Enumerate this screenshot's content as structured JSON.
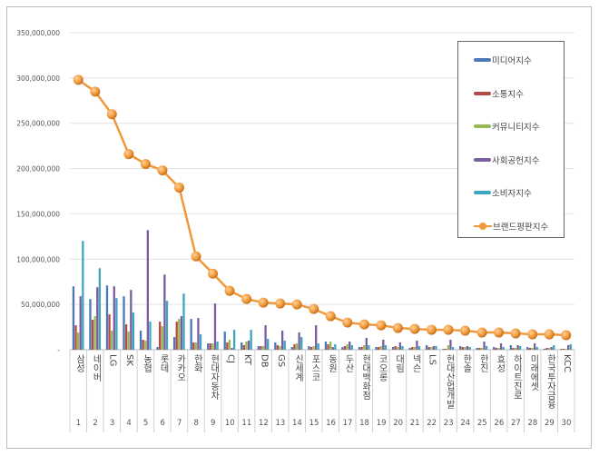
{
  "chart_data": {
    "type": "bar",
    "title": "",
    "xlabel": "",
    "ylabel": "",
    "ylim": [
      0,
      350000000
    ],
    "yticks": [
      "-",
      "50,000,000",
      "100,000,000",
      "150,000,000",
      "200,000,000",
      "250,000,000",
      "300,000,000",
      "350,000,000"
    ],
    "grid": true,
    "legend_position": "top-right",
    "categories": [
      "삼성",
      "네이버",
      "LG",
      "SK",
      "농협",
      "롯데",
      "카카오",
      "한화",
      "현대자동차",
      "CJ",
      "KT",
      "DB",
      "GS",
      "신세계",
      "포스코",
      "동원",
      "두산",
      "현대백화점",
      "코오롱",
      "대림",
      "넥슨",
      "LS",
      "현대산업개발",
      "한솔",
      "한진",
      "효성",
      "하이트진로",
      "미래에셋",
      "한국투자금융",
      "KCC"
    ],
    "ranks": [
      "1",
      "2",
      "3",
      "4",
      "5",
      "6",
      "7",
      "8",
      "9",
      "10",
      "11",
      "12",
      "13",
      "14",
      "15",
      "16",
      "17",
      "18",
      "19",
      "20",
      "21",
      "22",
      "23",
      "24",
      "25",
      "26",
      "27",
      "28",
      "29",
      "30"
    ],
    "series": [
      {
        "name": "미디어지수",
        "type": "bar",
        "color": "#4a78b8",
        "values": [
          70000000,
          56000000,
          71000000,
          59000000,
          21000000,
          3000000,
          14000000,
          34000000,
          7000000,
          20000000,
          8000000,
          4000000,
          8000000,
          3000000,
          4000000,
          9000000,
          3000000,
          3000000,
          3000000,
          3000000,
          2000000,
          5000000,
          1000000,
          4000000,
          2000000,
          3000000,
          5000000,
          3000000,
          1000000,
          1000000
        ]
      },
      {
        "name": "소통지수",
        "type": "bar",
        "color": "#b84a45",
        "values": [
          27000000,
          33000000,
          39000000,
          28000000,
          11000000,
          31000000,
          31000000,
          8000000,
          7000000,
          8000000,
          5000000,
          4000000,
          5000000,
          6000000,
          3000000,
          6000000,
          4000000,
          3000000,
          3000000,
          4000000,
          3000000,
          3000000,
          1000000,
          3000000,
          2000000,
          2000000,
          2000000,
          2000000,
          2000000,
          1000000
        ]
      },
      {
        "name": "커뮤니티지수",
        "type": "bar",
        "color": "#98b954",
        "values": [
          19000000,
          37000000,
          21000000,
          20000000,
          10000000,
          26000000,
          34000000,
          8000000,
          7000000,
          11000000,
          9000000,
          4000000,
          4000000,
          7000000,
          4000000,
          9000000,
          6000000,
          5000000,
          4000000,
          3000000,
          3000000,
          3000000,
          5000000,
          3000000,
          2000000,
          2000000,
          2000000,
          2000000,
          2000000,
          1000000
        ]
      },
      {
        "name": "사회공헌지수",
        "type": "bar",
        "color": "#7a5d9e",
        "values": [
          59000000,
          69000000,
          70000000,
          66000000,
          132000000,
          83000000,
          37000000,
          35000000,
          51000000,
          2000000,
          10000000,
          27000000,
          21000000,
          19000000,
          27000000,
          3000000,
          9000000,
          13000000,
          11000000,
          8000000,
          10000000,
          4000000,
          11000000,
          4000000,
          9000000,
          7000000,
          5000000,
          7000000,
          3000000,
          5000000
        ]
      },
      {
        "name": "소비자지수",
        "type": "bar",
        "color": "#3fa5be",
        "values": [
          120000000,
          90000000,
          57000000,
          41000000,
          31000000,
          54000000,
          62000000,
          17000000,
          9000000,
          22000000,
          22000000,
          12000000,
          10000000,
          14000000,
          7000000,
          6000000,
          5000000,
          5000000,
          5000000,
          4000000,
          4000000,
          4000000,
          3000000,
          3000000,
          4000000,
          3000000,
          4000000,
          3000000,
          5000000,
          6000000
        ]
      },
      {
        "name": "브랜드평판지수",
        "type": "line",
        "color": "#f0993a",
        "values": [
          298000000,
          285000000,
          260000000,
          216000000,
          205000000,
          198000000,
          179000000,
          103000000,
          84000000,
          65000000,
          56000000,
          52000000,
          51000000,
          50000000,
          45000000,
          37000000,
          30000000,
          28000000,
          27000000,
          24000000,
          23000000,
          22000000,
          22000000,
          21000000,
          19000000,
          19000000,
          18000000,
          17000000,
          17000000,
          16000000
        ]
      }
    ]
  }
}
